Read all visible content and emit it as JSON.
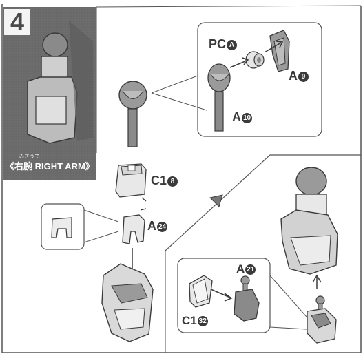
{
  "step": {
    "number": "4"
  },
  "title": {
    "ruby": "みぎうで",
    "text": "《右腕 RIGHT ARM》"
  },
  "parts": {
    "pc_a": {
      "code": "PC",
      "num": "A"
    },
    "a9": {
      "code": "A",
      "num": "9"
    },
    "a10": {
      "code": "A",
      "num": "10"
    },
    "c18": {
      "code": "C1",
      "num": "8"
    },
    "a24": {
      "code": "A",
      "num": "24"
    },
    "a21": {
      "code": "A",
      "num": "21"
    },
    "c132": {
      "code": "C1",
      "num": "32"
    }
  },
  "colors": {
    "ink": "#3a3a3a",
    "panel": "#6b6b6b",
    "part_fill": "#e6e6e6",
    "part_shade": "#bdbdbd"
  }
}
